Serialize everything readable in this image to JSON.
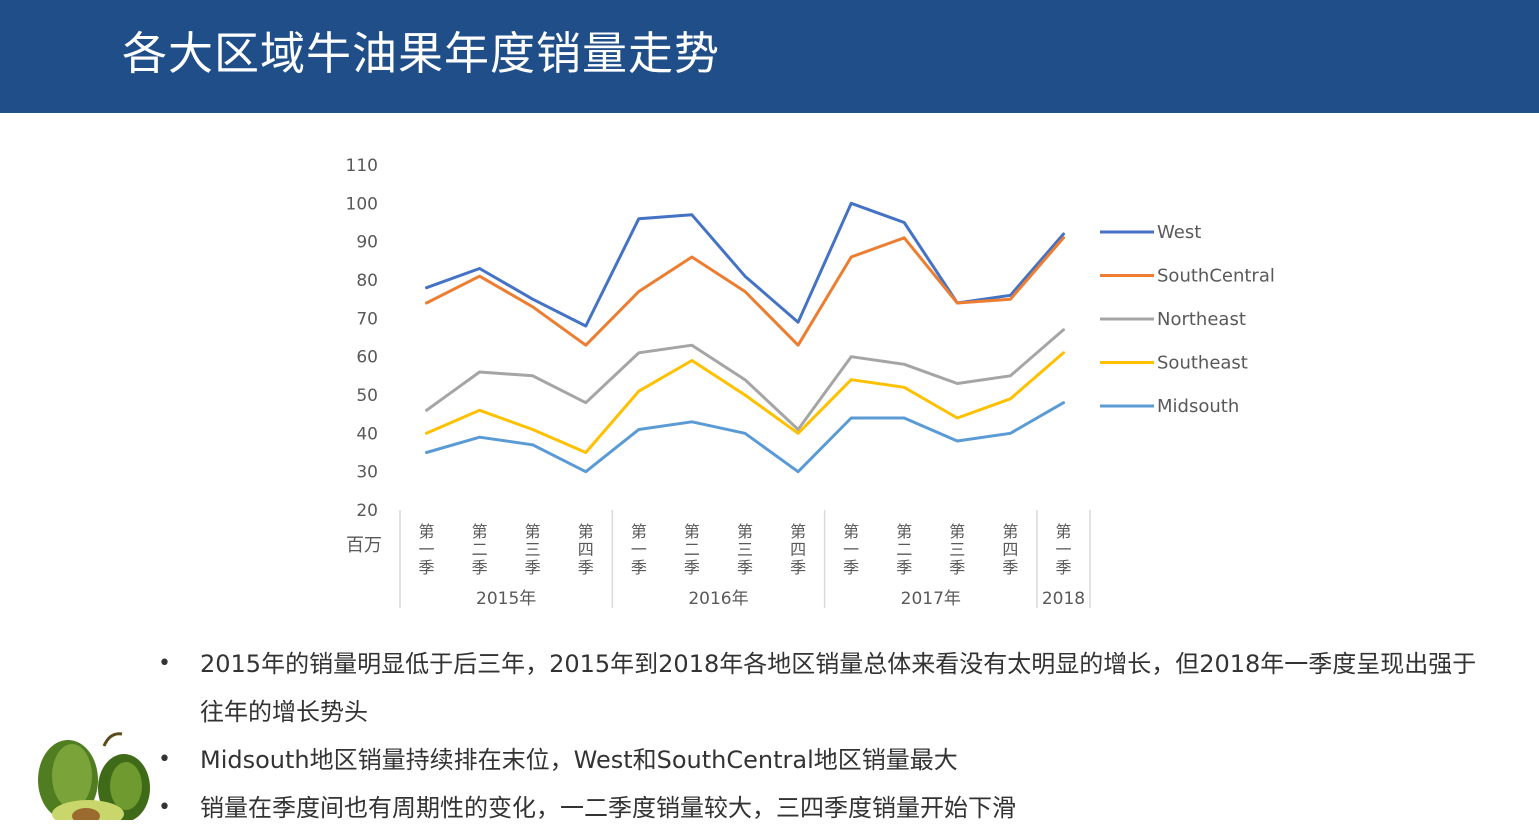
{
  "header": {
    "title": "各大区域牛油果年度销量走势"
  },
  "chart_data": {
    "type": "line",
    "title": "",
    "ylabel": "百万",
    "ylim": [
      20,
      110
    ],
    "yticks": [
      110,
      100,
      90,
      80,
      70,
      60,
      50,
      40,
      30,
      20
    ],
    "quarters": [
      "第一季",
      "第二季",
      "第三季",
      "第四季",
      "第一季",
      "第二季",
      "第三季",
      "第四季",
      "第一季",
      "第二季",
      "第三季",
      "第四季",
      "第一季"
    ],
    "years": [
      {
        "label": "2015年",
        "start": 0,
        "end": 3
      },
      {
        "label": "2016年",
        "start": 4,
        "end": 7
      },
      {
        "label": "2017年",
        "start": 8,
        "end": 11
      },
      {
        "label": "2018",
        "start": 12,
        "end": 12
      }
    ],
    "legend_position": "right",
    "series": [
      {
        "name": "West",
        "color": "#4472c4",
        "values": [
          78,
          83,
          75,
          68,
          96,
          97,
          81,
          69,
          100,
          95,
          74,
          76,
          92
        ]
      },
      {
        "name": "SouthCentral",
        "color": "#ed7d31",
        "values": [
          74,
          81,
          73,
          63,
          77,
          86,
          77,
          63,
          86,
          91,
          74,
          75,
          91
        ]
      },
      {
        "name": "Northeast",
        "color": "#a5a5a5",
        "values": [
          46,
          56,
          55,
          48,
          61,
          63,
          54,
          41,
          60,
          58,
          53,
          55,
          67
        ]
      },
      {
        "name": "Southeast",
        "color": "#ffc000",
        "values": [
          40,
          46,
          41,
          35,
          51,
          59,
          50,
          40,
          54,
          52,
          44,
          49,
          61
        ]
      },
      {
        "name": "Midsouth",
        "color": "#5b9bd5",
        "values": [
          35,
          39,
          37,
          30,
          41,
          43,
          40,
          30,
          44,
          44,
          38,
          40,
          48
        ]
      }
    ]
  },
  "bullets": [
    "2015年的销量明显低于后三年，2015年到2018年各地区销量总体来看没有太明显的增长，但2018年一季度呈现出强于往年的增长势头",
    "Midsouth地区销量持续排在末位，West和SouthCentral地区销量最大",
    "销量在季度间也有周期性的变化，一二季度销量较大，三四季度销量开始下滑"
  ],
  "bullet_marker": "•"
}
